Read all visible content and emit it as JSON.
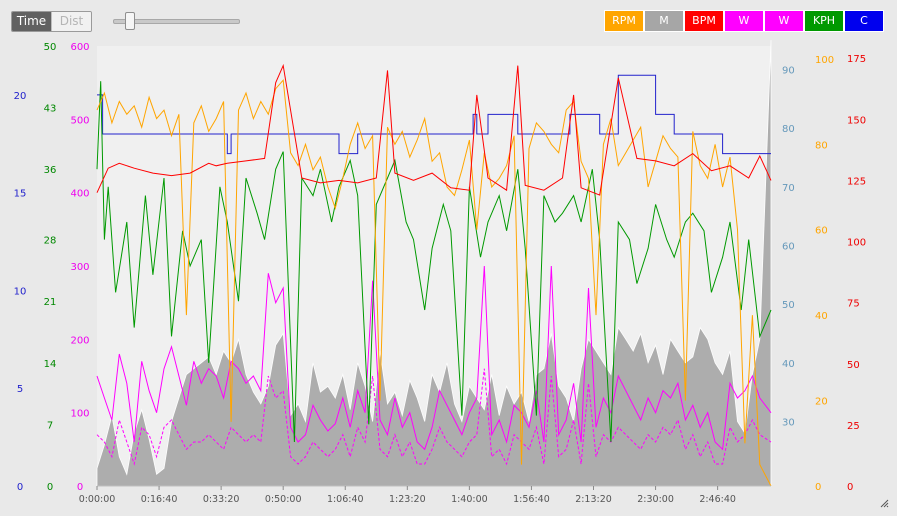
{
  "controls": {
    "mode_time_label": "Time",
    "mode_dist_label": "Dist",
    "zoom_level": 0.1
  },
  "legend": [
    {
      "label": "RPM",
      "color": "#ffa500"
    },
    {
      "label": "M",
      "color": "#a6a6a6"
    },
    {
      "label": "BPM",
      "color": "#ff0000"
    },
    {
      "label": "W",
      "color": "#ff00ff"
    },
    {
      "label": "W",
      "color": "#ff00ff"
    },
    {
      "label": "KPH",
      "color": "#009900"
    },
    {
      "label": "C",
      "color": "#0000ee"
    }
  ],
  "chart_data": {
    "type": "line",
    "x_unit": "elapsed time",
    "xlim": [
      "0:00:00",
      "3:01:00"
    ],
    "x_ticks": [
      "0:00:00",
      "0:16:40",
      "0:33:20",
      "0:50:00",
      "1:06:40",
      "1:23:20",
      "1:40:00",
      "1:56:40",
      "2:13:20",
      "2:30:00",
      "2:46:40"
    ],
    "grid": false,
    "axes": [
      {
        "id": "C",
        "side": "left",
        "color": "#2222cc",
        "ylim": [
          0,
          22.5
        ],
        "ticks": [
          0,
          5,
          10,
          15,
          20
        ]
      },
      {
        "id": "KPH",
        "side": "left",
        "color": "#008800",
        "ylim": [
          0,
          50
        ],
        "ticks": [
          0,
          7,
          14,
          21,
          28,
          36,
          43,
          50
        ]
      },
      {
        "id": "W",
        "side": "left",
        "color": "#ee00ee",
        "ylim": [
          0,
          600
        ],
        "ticks": [
          0,
          100,
          200,
          300,
          400,
          500,
          600
        ]
      },
      {
        "id": "M",
        "side": "right",
        "color": "#6699bb",
        "ylim": [
          19,
          94
        ],
        "ticks": [
          30,
          40,
          50,
          60,
          70,
          80,
          90
        ]
      },
      {
        "id": "RPM",
        "side": "right",
        "color": "#ffa500",
        "ylim": [
          0,
          103
        ],
        "ticks": [
          0,
          20,
          40,
          60,
          80,
          100
        ]
      },
      {
        "id": "BPM",
        "side": "right",
        "color": "#ee0000",
        "ylim": [
          0,
          180
        ],
        "ticks": [
          0,
          25,
          50,
          75,
          100,
          125,
          150,
          175
        ]
      }
    ],
    "series": [
      {
        "name": "C",
        "axis": "C",
        "color": "#2222cc",
        "x": [
          0,
          0.5,
          1.5,
          5.5,
          20,
          33,
          35,
          36,
          60,
          62,
          65,
          70,
          75,
          80,
          90,
          100,
          101,
          102,
          103,
          105,
          110,
          113,
          115,
          120,
          127,
          130,
          135,
          140,
          145,
          150,
          155,
          160,
          168,
          172,
          175,
          178,
          181
        ],
        "y": [
          20,
          20,
          18,
          18,
          18,
          18,
          17,
          18,
          18,
          18,
          17,
          18,
          18,
          18,
          18,
          18,
          19,
          18,
          18,
          19,
          19,
          18,
          18,
          18,
          19,
          19,
          18,
          21,
          21,
          19,
          18,
          18,
          17,
          17,
          17,
          17,
          17
        ]
      },
      {
        "name": "BPM",
        "axis": "BPM",
        "color": "#ff0000",
        "x": [
          0,
          3,
          6,
          10,
          15,
          20,
          25,
          30,
          32,
          35,
          40,
          45,
          48,
          50,
          55,
          60,
          65,
          70,
          75,
          78,
          80,
          85,
          90,
          95,
          100,
          102,
          105,
          110,
          113,
          115,
          120,
          125,
          128,
          130,
          135,
          140,
          145,
          150,
          155,
          160,
          165,
          170,
          175,
          178,
          181
        ],
        "y": [
          120,
          130,
          132,
          130,
          128,
          127,
          128,
          132,
          131,
          132,
          133,
          134,
          165,
          172,
          126,
          124,
          125,
          124,
          126,
          170,
          128,
          125,
          128,
          122,
          121,
          160,
          126,
          121,
          172,
          123,
          121,
          126,
          160,
          122,
          119,
          167,
          134,
          133,
          131,
          136,
          129,
          131,
          126,
          135,
          125
        ]
      },
      {
        "name": "RPM",
        "axis": "RPM",
        "color": "#ffa500",
        "x": [
          0,
          2,
          4,
          6,
          8,
          10,
          12,
          14,
          16,
          18,
          20,
          22,
          24,
          26,
          28,
          30,
          32,
          34,
          36,
          38,
          40,
          42,
          44,
          46,
          48,
          50,
          52,
          54,
          56,
          58,
          60,
          62,
          64,
          66,
          68,
          70,
          72,
          74,
          76,
          78,
          80,
          82,
          84,
          86,
          88,
          90,
          92,
          94,
          96,
          98,
          100,
          102,
          104,
          106,
          108,
          110,
          112,
          114,
          116,
          118,
          120,
          122,
          124,
          126,
          128,
          130,
          132,
          134,
          136,
          138,
          140,
          142,
          144,
          146,
          148,
          150,
          152,
          154,
          156,
          158,
          160,
          162,
          164,
          166,
          168,
          170,
          172,
          174,
          176,
          178,
          181
        ],
        "y": [
          88,
          92,
          85,
          90,
          87,
          89,
          84,
          91,
          86,
          88,
          82,
          87,
          40,
          85,
          89,
          83,
          86,
          90,
          15,
          88,
          92,
          86,
          90,
          87,
          93,
          95,
          78,
          75,
          80,
          74,
          77,
          70,
          65,
          72,
          80,
          85,
          79,
          82,
          20,
          84,
          80,
          83,
          77,
          81,
          86,
          76,
          78,
          70,
          68,
          74,
          81,
          60,
          78,
          70,
          72,
          75,
          82,
          5,
          79,
          85,
          83,
          80,
          78,
          88,
          90,
          76,
          72,
          40,
          80,
          86,
          75,
          78,
          81,
          84,
          70,
          76,
          82,
          79,
          77,
          20,
          83,
          75,
          72,
          80,
          70,
          77,
          60,
          10,
          40,
          5,
          0
        ]
      },
      {
        "name": "KPH",
        "axis": "KPH",
        "color": "#009900",
        "x": [
          0,
          1,
          2,
          3,
          5,
          8,
          10,
          13,
          15,
          18,
          20,
          23,
          25,
          28,
          30,
          33,
          35,
          38,
          40,
          43,
          45,
          48,
          50,
          53,
          55,
          58,
          60,
          63,
          65,
          68,
          70,
          73,
          75,
          78,
          80,
          83,
          85,
          88,
          90,
          93,
          95,
          98,
          100,
          103,
          105,
          108,
          110,
          113,
          115,
          118,
          120,
          123,
          125,
          128,
          130,
          133,
          135,
          138,
          140,
          143,
          145,
          148,
          150,
          153,
          155,
          158,
          160,
          163,
          165,
          168,
          170,
          173,
          175,
          178,
          181
        ],
        "y": [
          36,
          46,
          28,
          34,
          22,
          30,
          18,
          33,
          24,
          35,
          17,
          29,
          25,
          28,
          14,
          34,
          30,
          21,
          35,
          31,
          28,
          36,
          38,
          5,
          35,
          33,
          36,
          30,
          34,
          37,
          33,
          7,
          32,
          35,
          37,
          30,
          28,
          20,
          27,
          32,
          29,
          8,
          34,
          26,
          30,
          33,
          29,
          36,
          27,
          8,
          33,
          30,
          31,
          33,
          30,
          36,
          28,
          5,
          30,
          28,
          23,
          27,
          32,
          28,
          26,
          30,
          31,
          29,
          22,
          26,
          30,
          20,
          28,
          17,
          20
        ]
      },
      {
        "name": "W",
        "axis": "W",
        "color": "#ff00ff",
        "x": [
          0,
          2,
          4,
          6,
          8,
          10,
          12,
          14,
          16,
          18,
          20,
          22,
          24,
          26,
          28,
          30,
          32,
          34,
          36,
          38,
          40,
          42,
          44,
          46,
          48,
          50,
          52,
          54,
          56,
          58,
          60,
          62,
          64,
          66,
          68,
          70,
          72,
          74,
          76,
          78,
          80,
          82,
          84,
          86,
          88,
          90,
          92,
          94,
          96,
          98,
          100,
          102,
          104,
          106,
          108,
          110,
          112,
          114,
          116,
          118,
          120,
          122,
          124,
          126,
          128,
          130,
          132,
          134,
          136,
          138,
          140,
          142,
          144,
          146,
          148,
          150,
          152,
          154,
          156,
          158,
          160,
          162,
          164,
          166,
          168,
          170,
          172,
          174,
          176,
          178,
          181
        ],
        "y": [
          150,
          120,
          90,
          180,
          140,
          60,
          170,
          130,
          100,
          160,
          190,
          150,
          110,
          170,
          140,
          160,
          150,
          120,
          170,
          160,
          140,
          150,
          130,
          290,
          250,
          270,
          80,
          60,
          70,
          110,
          90,
          75,
          85,
          120,
          80,
          130,
          100,
          280,
          90,
          70,
          120,
          80,
          100,
          60,
          50,
          80,
          130,
          110,
          90,
          70,
          100,
          120,
          300,
          70,
          90,
          60,
          110,
          100,
          80,
          130,
          60,
          300,
          70,
          90,
          140,
          60,
          270,
          80,
          120,
          100,
          150,
          130,
          110,
          90,
          120,
          100,
          130,
          120,
          140,
          90,
          110,
          80,
          100,
          60,
          50,
          140,
          120,
          130,
          150,
          120,
          100
        ]
      },
      {
        "name": "W",
        "axis": "W",
        "color": "#ff00ff",
        "x": [
          0,
          2,
          4,
          6,
          8,
          10,
          12,
          14,
          16,
          18,
          20,
          22,
          24,
          26,
          28,
          30,
          32,
          34,
          36,
          38,
          40,
          42,
          44,
          46,
          48,
          50,
          52,
          54,
          56,
          58,
          60,
          62,
          64,
          66,
          68,
          70,
          72,
          74,
          76,
          78,
          80,
          82,
          84,
          86,
          88,
          90,
          92,
          94,
          96,
          98,
          100,
          102,
          104,
          106,
          108,
          110,
          112,
          114,
          116,
          118,
          120,
          122,
          124,
          126,
          128,
          130,
          132,
          134,
          136,
          138,
          140,
          142,
          144,
          146,
          148,
          150,
          152,
          154,
          156,
          158,
          160,
          162,
          164,
          166,
          168,
          170,
          172,
          174,
          176,
          178,
          181
        ],
        "y": [
          70,
          60,
          40,
          90,
          60,
          30,
          80,
          70,
          40,
          80,
          90,
          70,
          50,
          60,
          60,
          70,
          60,
          50,
          80,
          70,
          60,
          70,
          60,
          150,
          120,
          130,
          40,
          30,
          40,
          60,
          50,
          40,
          50,
          70,
          40,
          80,
          60,
          150,
          50,
          40,
          70,
          40,
          60,
          30,
          30,
          50,
          80,
          60,
          50,
          40,
          60,
          70,
          160,
          40,
          50,
          30,
          70,
          60,
          50,
          80,
          30,
          150,
          40,
          50,
          90,
          30,
          140,
          40,
          70,
          60,
          80,
          70,
          60,
          50,
          70,
          60,
          80,
          70,
          90,
          50,
          70,
          40,
          60,
          30,
          30,
          80,
          60,
          70,
          90,
          70,
          60
        ]
      },
      {
        "name": "M",
        "axis": "M",
        "color": "#a6a6a6",
        "area": true,
        "x": [
          0,
          2,
          4,
          6,
          8,
          10,
          12,
          14,
          16,
          18,
          20,
          22,
          24,
          26,
          28,
          30,
          32,
          34,
          36,
          38,
          40,
          42,
          44,
          46,
          48,
          50,
          52,
          54,
          56,
          58,
          60,
          62,
          64,
          66,
          68,
          70,
          72,
          74,
          76,
          78,
          80,
          82,
          84,
          86,
          88,
          90,
          92,
          94,
          96,
          98,
          100,
          102,
          104,
          106,
          108,
          110,
          112,
          114,
          116,
          118,
          120,
          122,
          124,
          126,
          128,
          130,
          132,
          134,
          136,
          138,
          140,
          142,
          144,
          146,
          148,
          150,
          152,
          154,
          156,
          158,
          160,
          162,
          164,
          166,
          168,
          170,
          172,
          174,
          176,
          178,
          181
        ],
        "y": [
          22,
          26,
          31,
          24,
          21,
          28,
          32,
          27,
          21,
          22,
          30,
          34,
          38,
          39,
          40,
          41,
          38,
          42,
          40,
          44,
          38,
          35,
          33,
          36,
          43,
          45,
          31,
          33,
          30,
          40,
          35,
          36,
          34,
          38,
          32,
          40,
          36,
          30,
          42,
          33,
          35,
          31,
          37,
          34,
          30,
          38,
          35,
          40,
          33,
          30,
          36,
          34,
          32,
          38,
          31,
          36,
          33,
          35,
          30,
          38,
          39,
          45,
          36,
          34,
          30,
          39,
          44,
          42,
          40,
          38,
          46,
          44,
          42,
          45,
          40,
          43,
          38,
          44,
          42,
          40,
          41,
          46,
          44,
          40,
          38,
          42,
          30,
          28,
          38,
          44,
          95
        ]
      }
    ]
  }
}
